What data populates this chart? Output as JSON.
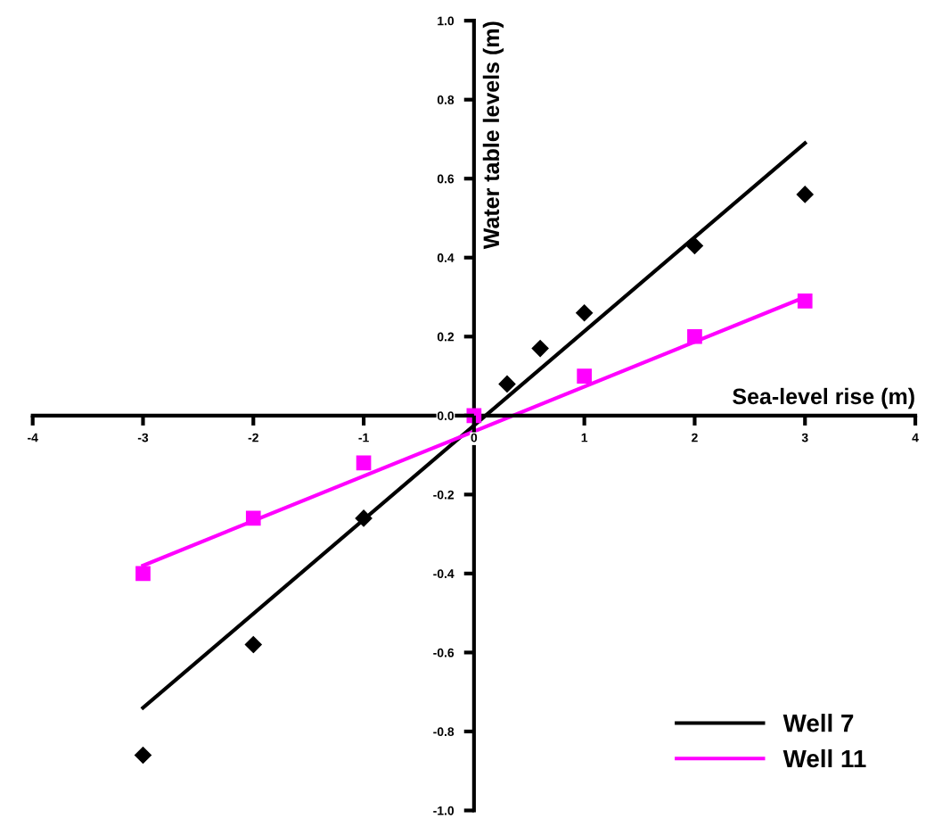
{
  "chart_data": {
    "type": "scatter",
    "xlabel": "Sea-level rise (m)",
    "ylabel": "Water table levels (m)",
    "xlim": [
      -4,
      4
    ],
    "xticks": [
      -4,
      -3,
      -2,
      -1,
      0,
      1,
      2,
      3,
      4
    ],
    "ylim": [
      -1.0,
      1.0
    ],
    "yticks": [
      {
        "value": -1.0,
        "label": "-1.0"
      },
      -0.8,
      -0.6,
      -0.4,
      -0.2,
      {
        "value": 0.0,
        "label": "0.0"
      },
      0.2,
      0.4,
      0.6,
      0.8,
      {
        "value": 1.0,
        "label": "1.0"
      }
    ],
    "grid": false,
    "legend": "bottom right",
    "line_style": "solid",
    "series": [
      {
        "marker": "diamond",
        "color": "#000000",
        "x": [
          -3,
          -2,
          -1,
          0.3,
          0.6,
          1,
          2,
          3
        ],
        "values": [
          -0.86,
          -0.58,
          -0.26,
          0.08,
          0.17,
          0.26,
          0.43,
          0.56
        ]
      },
      {
        "marker": "square",
        "color": "#ff00ff",
        "x": [
          -3,
          -2,
          -1,
          0,
          1,
          2,
          3
        ],
        "values": [
          -0.4,
          -0.26,
          -0.12,
          0.0,
          0.1,
          0.2,
          0.29
        ]
      },
      {
        "type": "line",
        "name": "Well 7",
        "marker": "none",
        "color": "#000000",
        "x": [
          -3,
          3
        ],
        "values": [
          -0.74,
          0.69
        ]
      },
      {
        "type": "line",
        "name": "Well 11",
        "marker": "none",
        "color": "#ff00ff",
        "x": [
          -3,
          3
        ],
        "values": [
          -0.38,
          0.3
        ]
      }
    ]
  }
}
